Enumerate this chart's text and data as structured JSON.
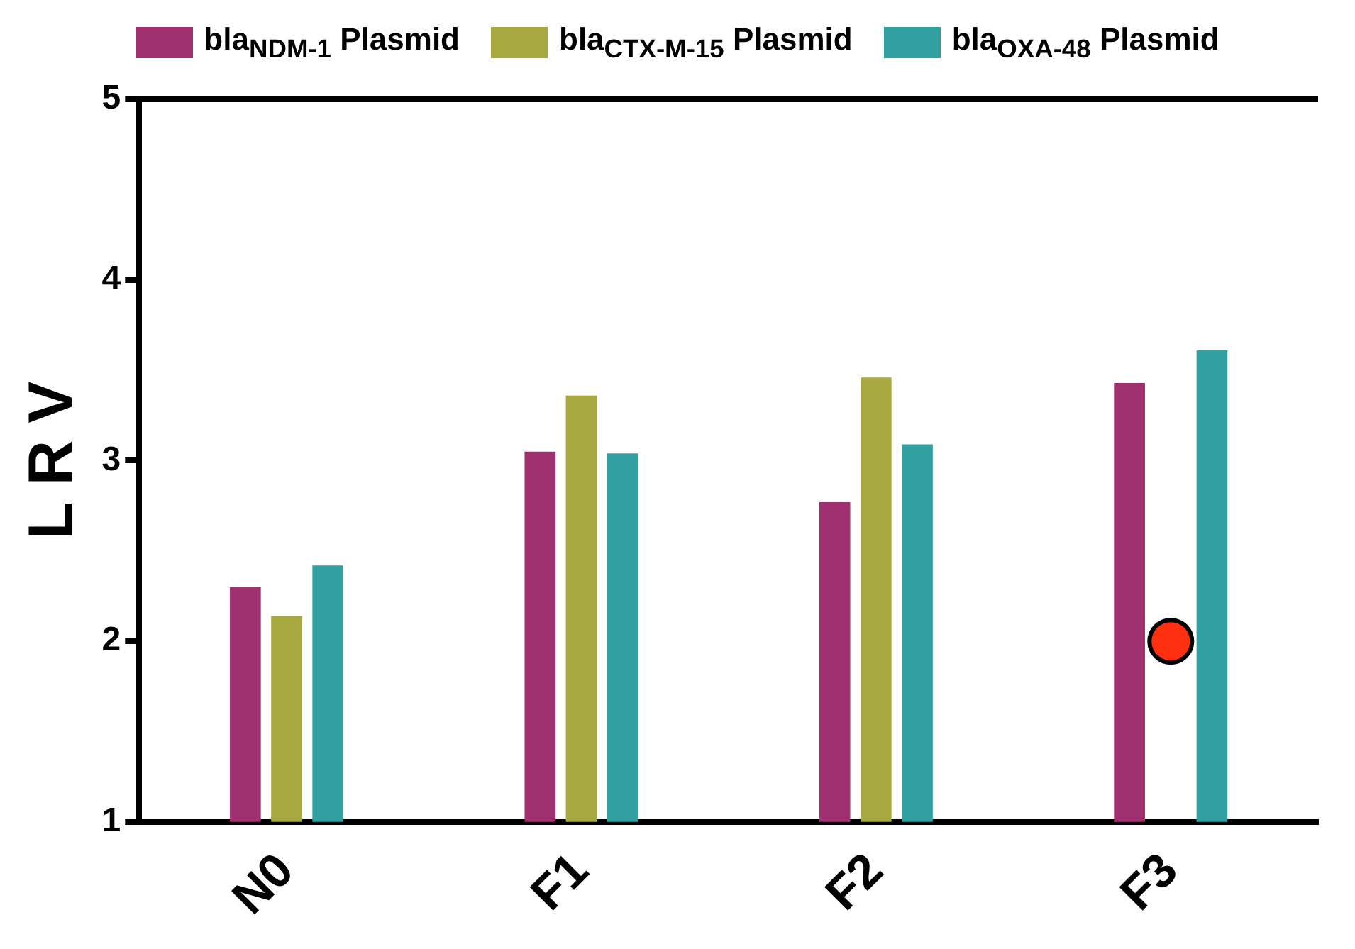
{
  "chart_data": {
    "type": "bar",
    "ylabel": "L R V",
    "categories": [
      "N0",
      "F1",
      "F2",
      "F3"
    ],
    "series": [
      {
        "name": "bla$_{NDM-1}$ Plasmid",
        "color": "#a03070",
        "values": [
          2.3,
          3.05,
          2.77,
          3.43
        ]
      },
      {
        "name": "bla$_{CTX-M-15}$ Plasmid",
        "color": "#a8a840",
        "values": [
          2.14,
          3.36,
          3.46,
          null
        ]
      },
      {
        "name": "bla$_{OXA-48}$ Plasmid",
        "color": "#30a0a0",
        "values": [
          2.42,
          3.04,
          3.09,
          3.61
        ]
      },
      {
        "type": "scatter",
        "color": "#ff3010",
        "x": [
          "F3"
        ],
        "values": [
          2.0
        ],
        "marker": "circle"
      }
    ],
    "ylim": [
      1,
      5
    ],
    "yticks": [
      1,
      2,
      3,
      4,
      5
    ],
    "grid": false,
    "legend": "top"
  }
}
